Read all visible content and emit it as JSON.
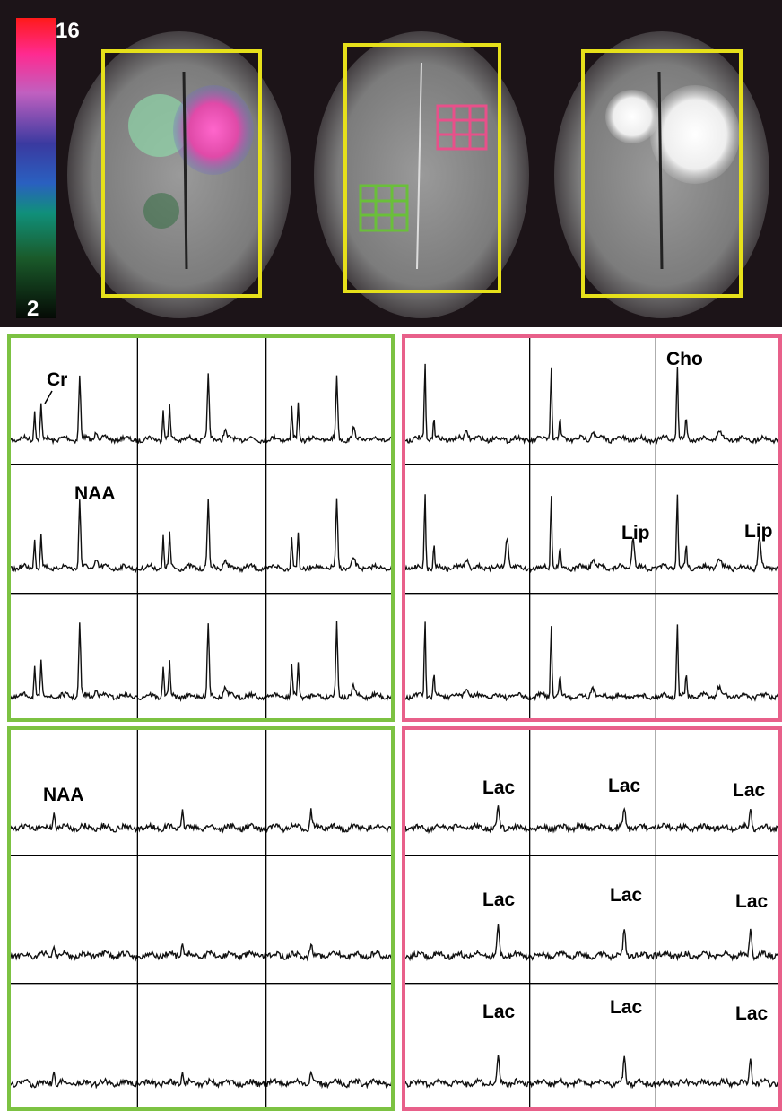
{
  "colorbar": {
    "max": 16,
    "min": 2
  },
  "spectra": {
    "healthy_short_te": [
      "Cr",
      "NAA"
    ],
    "tumor_short_te": [
      "Cho",
      "Lip",
      "Lip"
    ],
    "healthy_long_te": [
      "NAA"
    ],
    "tumor_long_te": [
      "Lac",
      "Lac",
      "Lac",
      "Lac",
      "Lac",
      "Lac",
      "Lac",
      "Lac",
      "Lac"
    ]
  }
}
